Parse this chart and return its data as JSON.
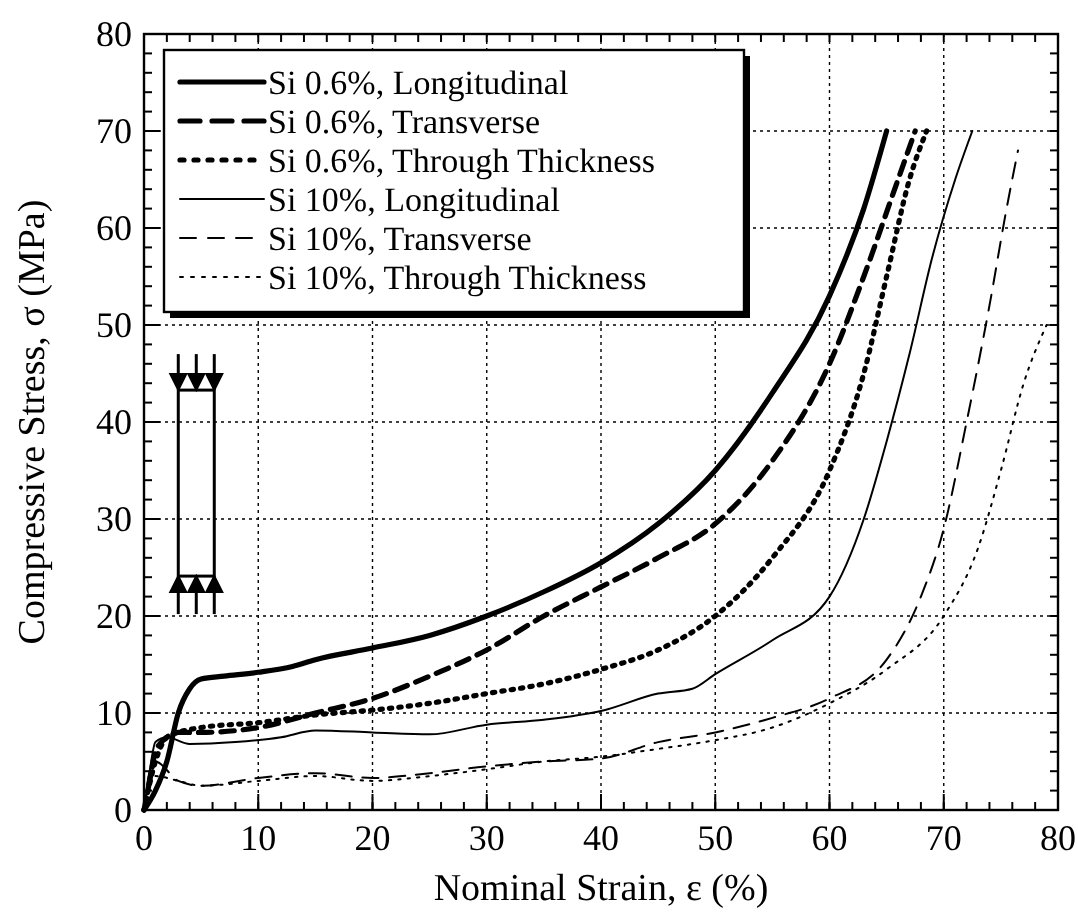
{
  "chart_data": {
    "type": "line",
    "xlabel": "Nominal Strain, ε (%)",
    "ylabel": "Compressive Stress, σ (MPa)",
    "xlim": [
      0,
      80
    ],
    "ylim": [
      0,
      80
    ],
    "xticks": [
      0,
      10,
      20,
      30,
      40,
      50,
      60,
      70,
      80
    ],
    "yticks": [
      0,
      10,
      20,
      30,
      40,
      50,
      60,
      70,
      80
    ],
    "grid": true,
    "legend": "top left",
    "series": [
      {
        "name": "Si 0.6%, Longitudinal",
        "color": "#000000",
        "line_style": "solid",
        "x": [
          0,
          1,
          2,
          3,
          4,
          5,
          7,
          10,
          13,
          15,
          20,
          25,
          30,
          35,
          40,
          45,
          50,
          55,
          60,
          63,
          65
        ],
        "values": [
          0,
          2,
          5,
          10,
          12.5,
          13.5,
          13.8,
          14.2,
          14.8,
          15.5,
          16.7,
          18,
          20,
          22.5,
          25.5,
          29.5,
          35,
          43,
          53,
          62,
          70
        ]
      },
      {
        "name": "Si 0.6%, Transverse",
        "color": "#000000",
        "line_style": "dashed",
        "x": [
          0,
          0.5,
          1,
          2,
          3,
          5,
          10,
          15,
          20,
          25,
          30,
          35,
          40,
          45,
          50,
          55,
          60,
          63,
          66,
          67.5
        ],
        "values": [
          0,
          3,
          6,
          7.5,
          8,
          8,
          8.5,
          10,
          11.5,
          13.8,
          16.5,
          20,
          23,
          26,
          29.5,
          36,
          46,
          55,
          65,
          70
        ]
      },
      {
        "name": "Si 0.6%, Through Thickness",
        "color": "#000000",
        "line_style": "dotted",
        "x": [
          0,
          1,
          2,
          3,
          5,
          10,
          15,
          20,
          25,
          30,
          35,
          40,
          45,
          50,
          55,
          60,
          63,
          65,
          67,
          68.5
        ],
        "values": [
          0,
          5,
          7.5,
          8,
          8.5,
          9,
          9.8,
          10.3,
          11,
          12,
          13,
          14.5,
          16.5,
          20,
          26,
          35,
          45,
          55,
          65,
          70
        ]
      },
      {
        "name": "Si 10%, Longitudinal",
        "color": "#000000",
        "line_style": "solid",
        "x": [
          0,
          0.5,
          1,
          2,
          4,
          8,
          12,
          15,
          20,
          25,
          30,
          35,
          40,
          45,
          48,
          50,
          55,
          60,
          63,
          65,
          67,
          69,
          71,
          72.5
        ],
        "values": [
          0,
          4,
          7,
          7.5,
          6.8,
          7,
          7.5,
          8.2,
          8,
          7.8,
          8.8,
          9.3,
          10.2,
          12,
          12.5,
          14,
          17.5,
          22,
          30,
          38,
          47,
          57,
          65,
          70
        ]
      },
      {
        "name": "Si 10%, Transverse",
        "color": "#000000",
        "line_style": "dashed",
        "x": [
          0,
          0.5,
          1,
          3,
          5,
          10,
          15,
          20,
          25,
          30,
          35,
          40,
          45,
          50,
          55,
          60,
          65,
          68,
          70,
          72,
          74,
          75.5,
          76.5
        ],
        "values": [
          0,
          4,
          5,
          3,
          2.5,
          3.3,
          3.8,
          3.3,
          3.8,
          4.5,
          5,
          5.3,
          7,
          8,
          9.5,
          11.5,
          15.5,
          22,
          29,
          40,
          52,
          62,
          68
        ]
      },
      {
        "name": "Si 10%, Through Thickness",
        "color": "#000000",
        "line_style": "dotted",
        "x": [
          0,
          1,
          3,
          5,
          10,
          15,
          20,
          25,
          30,
          35,
          40,
          45,
          50,
          55,
          60,
          65,
          70,
          73,
          75,
          77,
          79
        ],
        "values": [
          0,
          3.5,
          3,
          2.5,
          3,
          3.5,
          3,
          3.5,
          4.2,
          5,
          5.5,
          6.3,
          7.2,
          8.5,
          11,
          14.5,
          20,
          27,
          35,
          44,
          50
        ]
      }
    ]
  }
}
